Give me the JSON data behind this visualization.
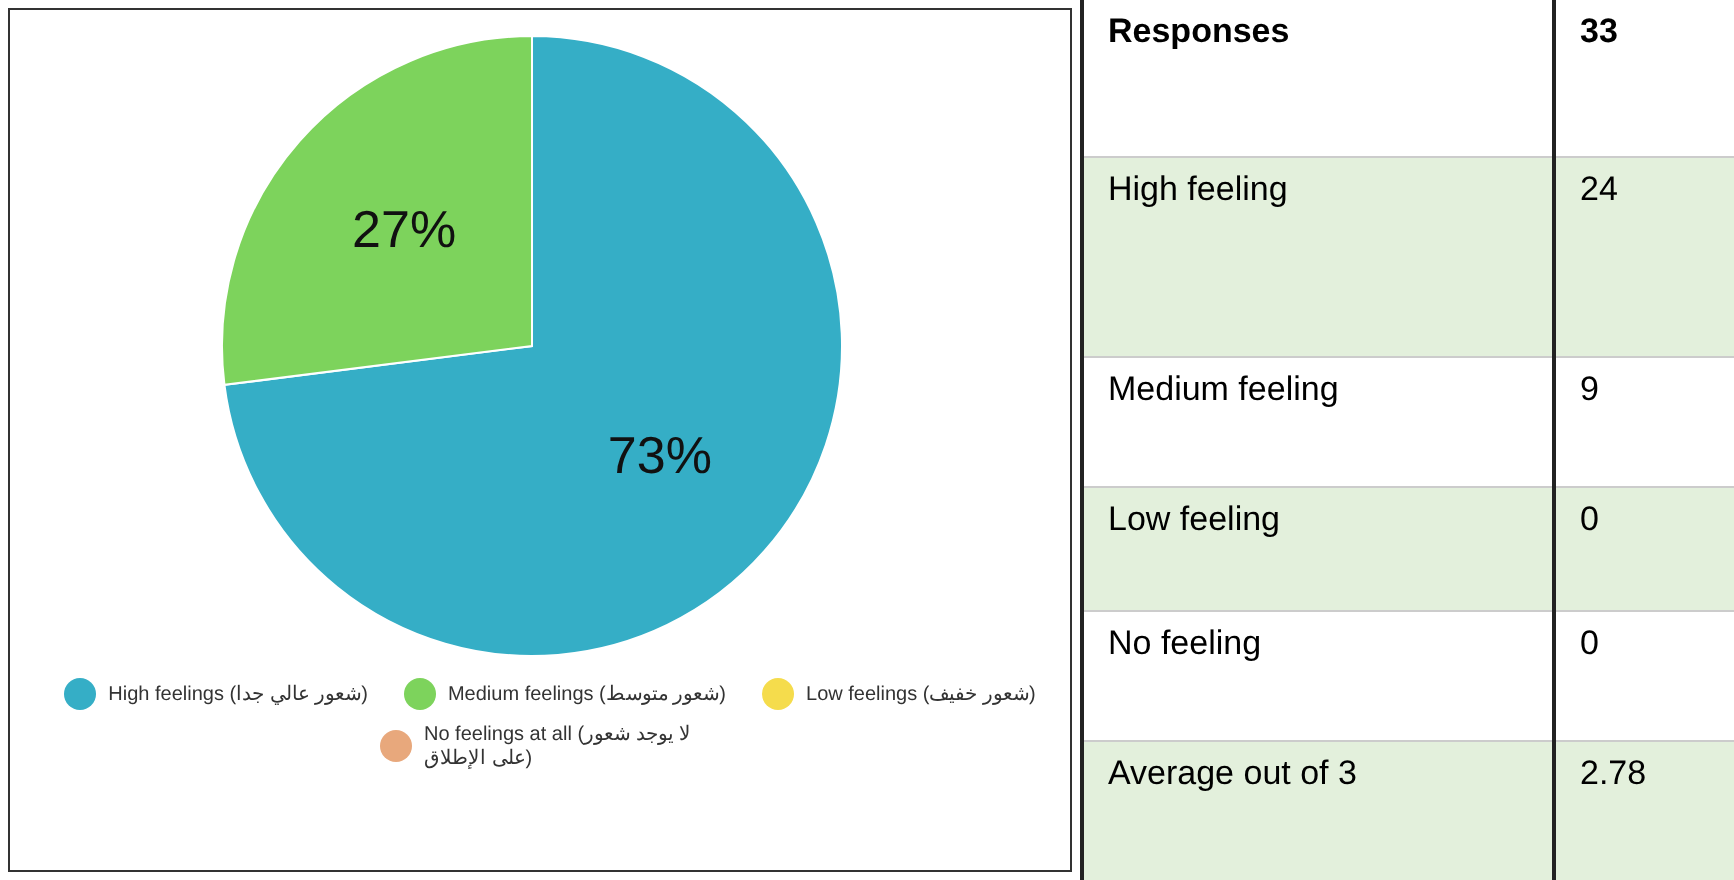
{
  "chart_data": [
    {
      "type": "pie",
      "categories": [
        "High feelings (شعور عالي جدا)",
        "Medium feelings (شعور متوسط)",
        "Low feelings (شعور خفيف)",
        "No feelings at all (لا يوجد شعور على الإطلاق)"
      ],
      "values": [
        73,
        27,
        0,
        0
      ],
      "colors": [
        "#35aec6",
        "#7dd35c",
        "#f5dc4c",
        "#e8a87c"
      ],
      "value_labels": [
        "73%",
        "27%",
        null,
        null
      ],
      "legend": "bottom"
    },
    {
      "type": "other",
      "categories": [
        "Responses",
        "High feeling",
        "Medium feeling",
        "Low feeling",
        "No feeling",
        "Average out of 3"
      ],
      "values": [
        33,
        24,
        9,
        0,
        0,
        2.78
      ],
      "data_labels": true
    }
  ]
}
